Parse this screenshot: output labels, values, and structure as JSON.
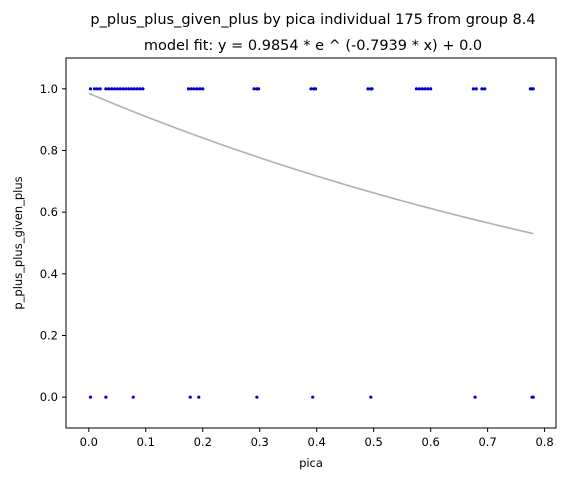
{
  "chart_data": {
    "type": "scatter",
    "title": "p_plus_plus_given_plus by pica individual 175 from group 8.4",
    "subtitle": "model fit: y = 0.9854 * e ^ (-0.7939 * x) + 0.0",
    "xlabel": "pica",
    "ylabel": "p_plus_plus_given_plus",
    "xlim": [
      -0.04,
      0.82
    ],
    "ylim": [
      -0.1,
      1.1
    ],
    "xticks": [
      "0.0",
      "0.1",
      "0.2",
      "0.3",
      "0.4",
      "0.5",
      "0.6",
      "0.7",
      "0.8"
    ],
    "yticks": [
      "0.0",
      "0.2",
      "0.4",
      "0.6",
      "0.8",
      "1.0"
    ],
    "grid": false,
    "point_color": "#0000cc",
    "fit_color": "#b0b0b0",
    "fit_model": {
      "a": 0.9854,
      "b": -0.7939,
      "c": 0.0,
      "x_range": [
        0.0,
        0.78
      ]
    },
    "series": [
      {
        "points": [
          [
            0.003,
            1
          ],
          [
            0.01,
            1
          ],
          [
            0.015,
            1
          ],
          [
            0.02,
            1
          ],
          [
            0.03,
            1
          ],
          [
            0.035,
            1
          ],
          [
            0.04,
            1
          ],
          [
            0.045,
            1
          ],
          [
            0.05,
            1
          ],
          [
            0.055,
            1
          ],
          [
            0.06,
            1
          ],
          [
            0.065,
            1
          ],
          [
            0.07,
            1
          ],
          [
            0.075,
            1
          ],
          [
            0.08,
            1
          ],
          [
            0.085,
            1
          ],
          [
            0.09,
            1
          ],
          [
            0.095,
            1
          ],
          [
            0.175,
            1
          ],
          [
            0.18,
            1
          ],
          [
            0.185,
            1
          ],
          [
            0.19,
            1
          ],
          [
            0.195,
            1
          ],
          [
            0.2,
            1
          ],
          [
            0.29,
            1
          ],
          [
            0.295,
            1
          ],
          [
            0.298,
            1
          ],
          [
            0.39,
            1
          ],
          [
            0.395,
            1
          ],
          [
            0.398,
            1
          ],
          [
            0.49,
            1
          ],
          [
            0.495,
            1
          ],
          [
            0.497,
            1
          ],
          [
            0.575,
            1
          ],
          [
            0.58,
            1
          ],
          [
            0.585,
            1
          ],
          [
            0.59,
            1
          ],
          [
            0.595,
            1
          ],
          [
            0.6,
            1
          ],
          [
            0.675,
            1
          ],
          [
            0.68,
            1
          ],
          [
            0.69,
            1
          ],
          [
            0.695,
            1
          ],
          [
            0.775,
            1
          ],
          [
            0.778,
            1
          ],
          [
            0.78,
            1
          ],
          [
            0.003,
            0
          ],
          [
            0.03,
            0
          ],
          [
            0.078,
            0
          ],
          [
            0.178,
            0
          ],
          [
            0.193,
            0
          ],
          [
            0.295,
            0
          ],
          [
            0.393,
            0
          ],
          [
            0.495,
            0
          ],
          [
            0.678,
            0
          ],
          [
            0.778,
            0
          ],
          [
            0.78,
            0
          ]
        ]
      }
    ]
  }
}
